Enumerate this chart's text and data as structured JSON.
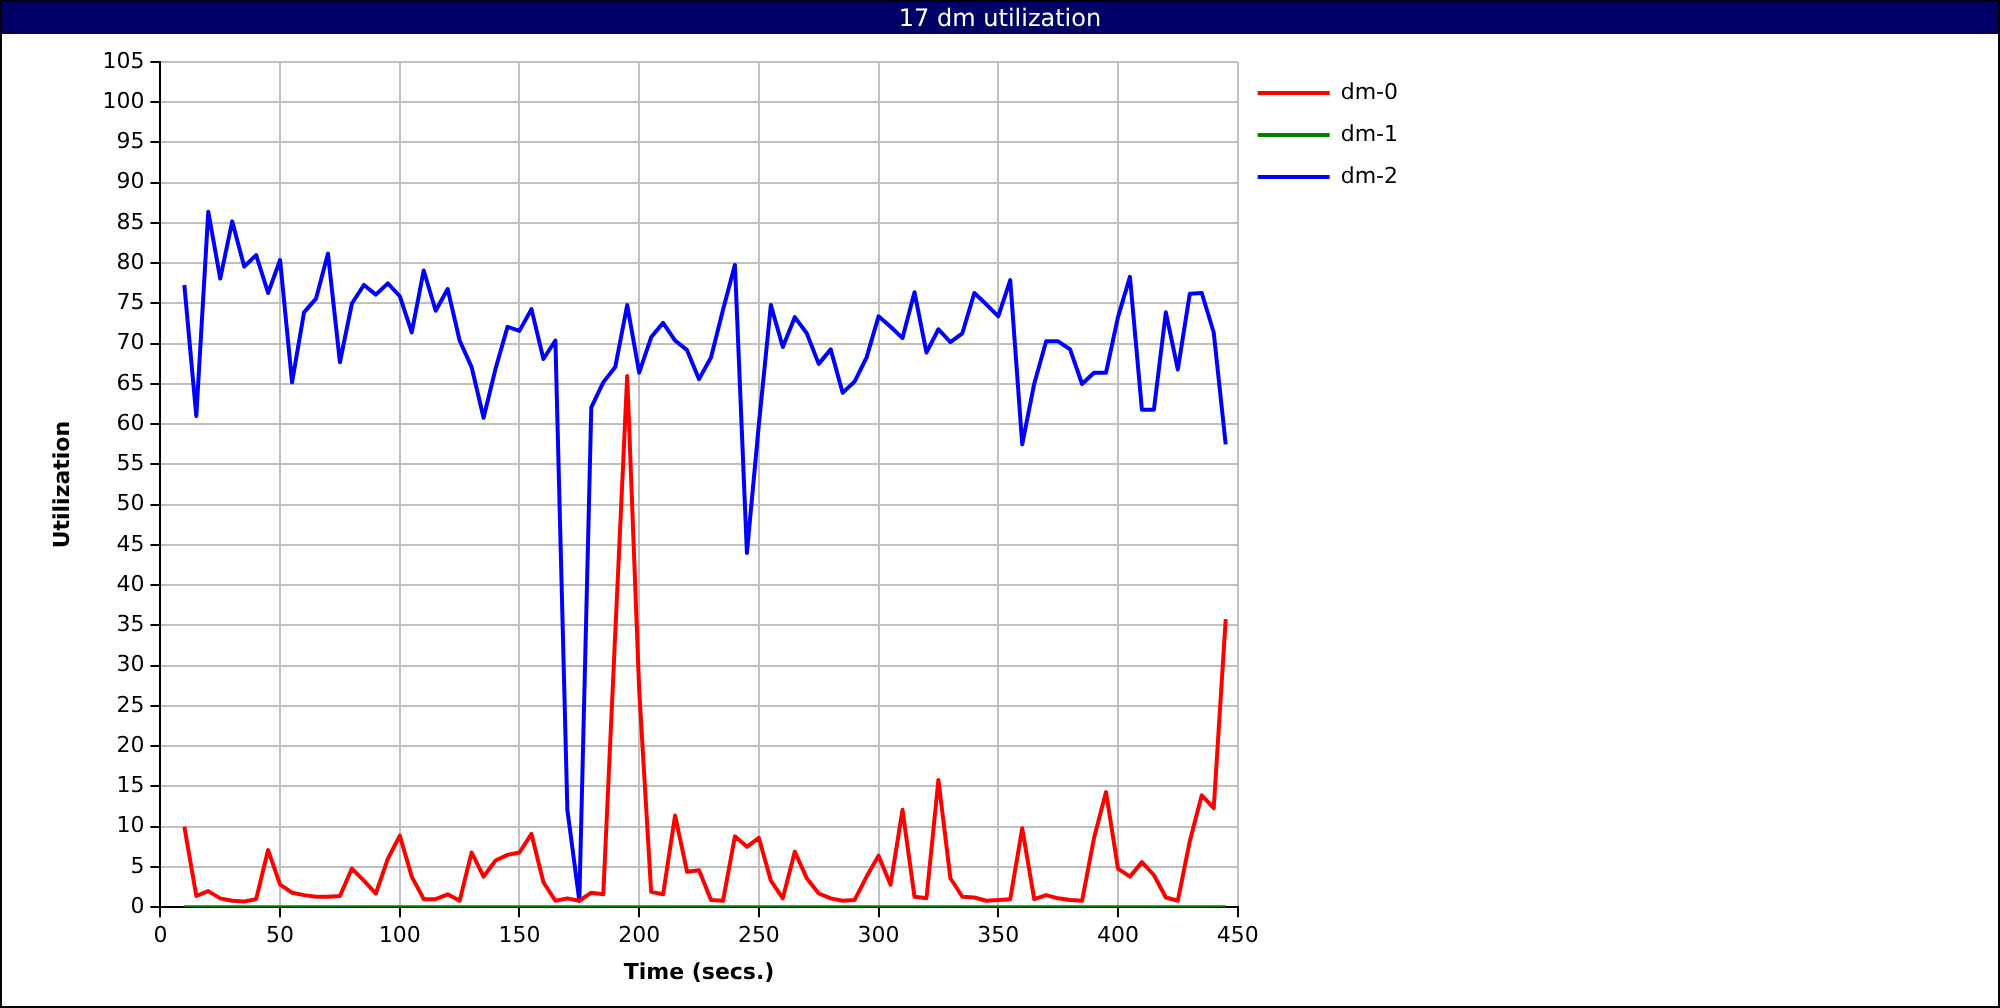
{
  "chart_data": {
    "type": "line",
    "title": "17 dm utilization",
    "xlabel": "Time (secs.)",
    "ylabel": "Utilization",
    "x": [
      10,
      15,
      20,
      25,
      30,
      35,
      40,
      45,
      50,
      55,
      60,
      65,
      70,
      75,
      80,
      85,
      90,
      95,
      100,
      105,
      110,
      115,
      120,
      125,
      130,
      135,
      140,
      145,
      150,
      155,
      160,
      165,
      170,
      175,
      180,
      185,
      190,
      195,
      200,
      205,
      210,
      215,
      220,
      225,
      230,
      235,
      240,
      245,
      250,
      255,
      260,
      265,
      270,
      275,
      280,
      285,
      290,
      295,
      300,
      305,
      310,
      315,
      320,
      325,
      330,
      335,
      340,
      345,
      350,
      355,
      360,
      365,
      370,
      375,
      380,
      385,
      390,
      395,
      400,
      405,
      410,
      415,
      420,
      425,
      430,
      435,
      440,
      445
    ],
    "series": [
      {
        "name": "dm-0",
        "color": "#ff0000",
        "values": [
          10,
          1.4,
          2,
          1.1,
          0.8,
          0.7,
          1,
          7.1,
          2.8,
          1.8,
          1.5,
          1.3,
          1.3,
          1.4,
          4.8,
          3.3,
          1.7,
          6,
          8.9,
          3.8,
          1,
          1,
          1.6,
          0.8,
          6.8,
          3.8,
          5.8,
          6.5,
          6.8,
          9.1,
          3.1,
          0.8,
          1.1,
          0.8,
          1.8,
          1.6,
          34,
          66,
          27,
          1.9,
          1.6,
          11.4,
          4.4,
          4.6,
          0.9,
          0.8,
          8.8,
          7.5,
          8.6,
          3.3,
          1.1,
          6.9,
          3.6,
          1.7,
          1.1,
          0.8,
          0.9,
          3.8,
          6.4,
          2.8,
          12.1,
          1.3,
          1.1,
          15.8,
          3.6,
          1.3,
          1.2,
          0.8,
          0.9,
          1,
          9.8,
          1,
          1.5,
          1.1,
          0.9,
          0.8,
          8.6,
          14.3,
          4.8,
          3.8,
          5.6,
          4,
          1.2,
          0.8,
          8.2,
          13.9,
          12.3,
          35.8
        ]
      },
      {
        "name": "dm-1",
        "color": "#008000",
        "values": [
          0,
          0,
          0,
          0,
          0,
          0,
          0,
          0,
          0,
          0,
          0,
          0,
          0,
          0,
          0,
          0,
          0,
          0,
          0,
          0,
          0,
          0,
          0,
          0,
          0,
          0,
          0,
          0,
          0,
          0,
          0,
          0,
          0,
          0,
          0,
          0,
          0,
          0,
          0,
          0,
          0,
          0,
          0,
          0,
          0,
          0,
          0,
          0,
          0,
          0,
          0,
          0,
          0,
          0,
          0,
          0,
          0,
          0,
          0,
          0,
          0,
          0,
          0,
          0,
          0,
          0,
          0,
          0,
          0,
          0,
          0,
          0,
          0,
          0,
          0,
          0,
          0,
          0,
          0,
          0,
          0,
          0,
          0,
          0,
          0,
          0,
          0,
          0
        ]
      },
      {
        "name": "dm-2",
        "color": "#0000ff",
        "values": [
          77.3,
          61,
          86.4,
          78.1,
          85.2,
          79.6,
          81,
          76.3,
          80.4,
          65.2,
          73.9,
          75.6,
          81.2,
          67.7,
          75,
          77.3,
          76.1,
          77.5,
          75.9,
          71.4,
          79.1,
          74.1,
          76.8,
          70.4,
          67.1,
          60.8,
          66.9,
          72.1,
          71.6,
          74.3,
          68.1,
          70.4,
          12.1,
          0.8,
          62.1,
          65.2,
          67.1,
          74.8,
          66.4,
          70.8,
          72.6,
          70.4,
          69.2,
          65.6,
          68.3,
          74.2,
          79.8,
          44,
          60,
          74.8,
          69.6,
          73.3,
          71.3,
          67.5,
          69.3,
          63.9,
          65.3,
          68.3,
          73.4,
          72.1,
          70.7,
          76.4,
          68.9,
          71.8,
          70.2,
          71.3,
          76.3,
          74.9,
          73.4,
          77.9,
          57.5,
          65,
          70.3,
          70.3,
          69.3,
          65,
          66.4,
          66.4,
          73.3,
          78.3,
          61.8,
          61.8,
          73.9,
          66.8,
          76.2,
          76.3,
          71.4,
          57.5
        ]
      }
    ],
    "xlim": [
      0,
      450
    ],
    "xticks": [
      0,
      50,
      100,
      150,
      200,
      250,
      300,
      350,
      400,
      450
    ],
    "ylim": [
      0,
      105
    ],
    "yticks": [
      0,
      5,
      10,
      15,
      20,
      25,
      30,
      35,
      40,
      45,
      50,
      55,
      60,
      65,
      70,
      75,
      80,
      85,
      90,
      95,
      100,
      105
    ],
    "grid": true,
    "legend": "top right",
    "marker": "none",
    "line_style": "solid"
  }
}
